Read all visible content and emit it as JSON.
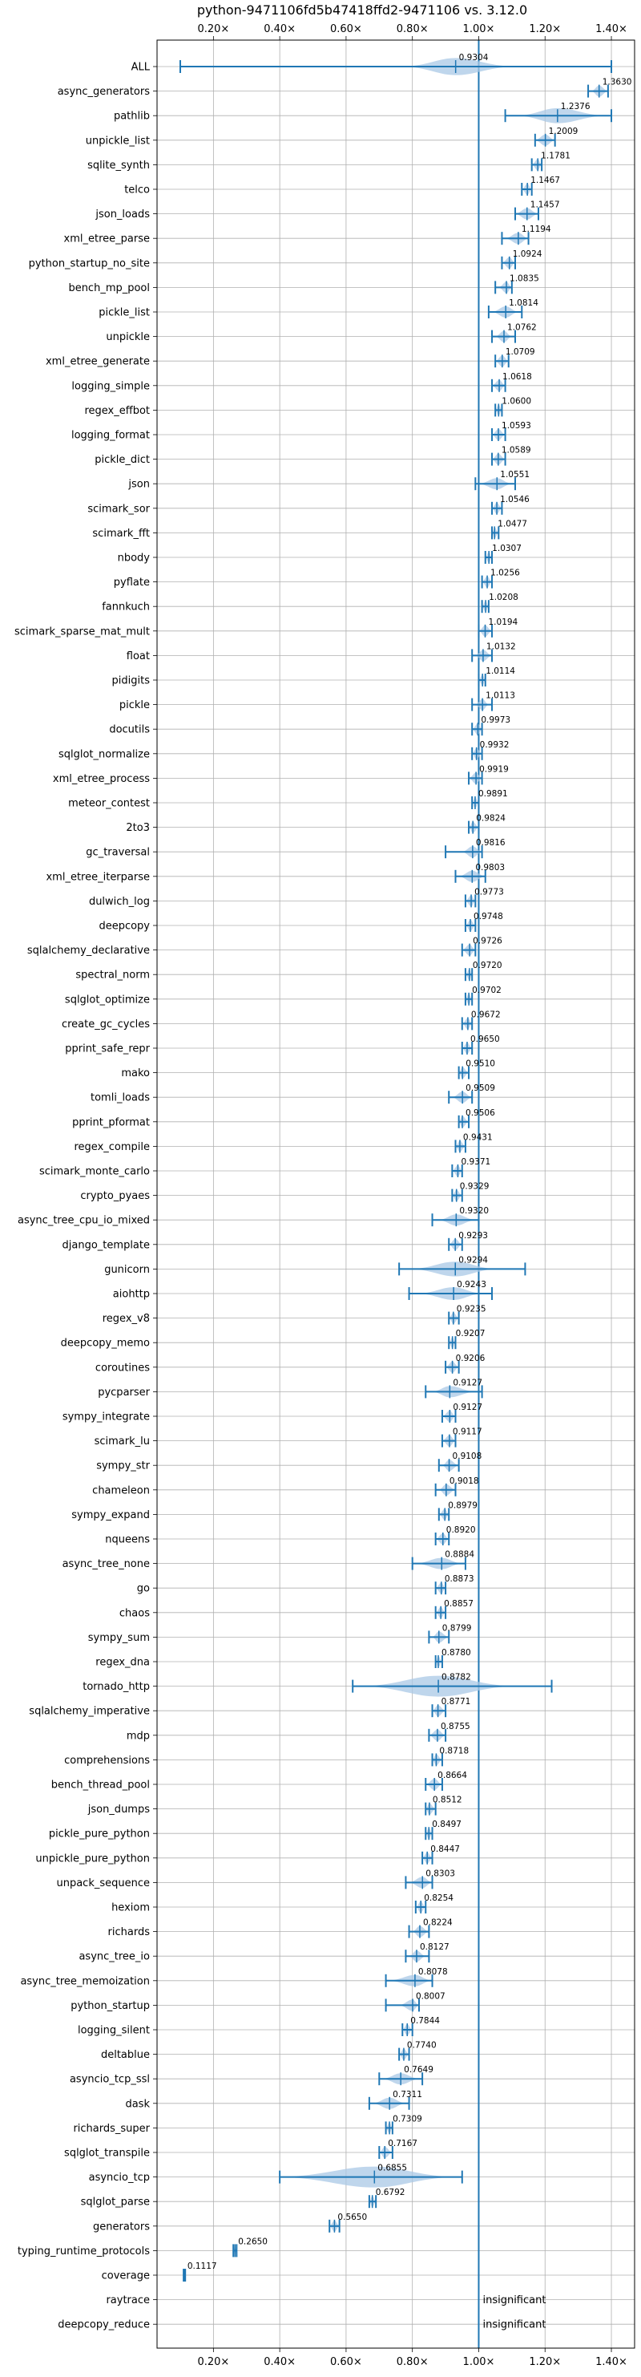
{
  "chart_data": {
    "type": "violin",
    "title": "python-9471106fd5b47418ffd2-9471106 vs. 3.12.0",
    "x_tick_labels": [
      "0.20×",
      "0.40×",
      "0.60×",
      "0.80×",
      "1.00×",
      "1.20×",
      "1.40×"
    ],
    "x_ticks": [
      0.2,
      0.4,
      0.6,
      0.8,
      1.0,
      1.2,
      1.4
    ],
    "xlim": [
      0.03,
      1.47
    ],
    "reference_line": 1.0,
    "grid": true,
    "accent_color": "#1f77b4",
    "violin_color": "#a9c8e6",
    "insignificant_label": "insignificant",
    "benchmarks": [
      {
        "name": "ALL",
        "value": 0.9304,
        "label": "0.9304",
        "lo": 0.1,
        "hi": 1.4,
        "vlo": 0.78,
        "vhi": 1.1
      },
      {
        "name": "async_generators",
        "value": 1.363,
        "label": "1.3630",
        "lo": 1.33,
        "hi": 1.39,
        "vlo": 1.34,
        "vhi": 1.39
      },
      {
        "name": "pathlib",
        "value": 1.2376,
        "label": "1.2376",
        "lo": 1.08,
        "hi": 1.4,
        "vlo": 1.12,
        "vhi": 1.38
      },
      {
        "name": "unpickle_list",
        "value": 1.2009,
        "label": "1.2009",
        "lo": 1.17,
        "hi": 1.23,
        "vlo": 1.17,
        "vhi": 1.23
      },
      {
        "name": "sqlite_synth",
        "value": 1.1781,
        "label": "1.1781",
        "lo": 1.16,
        "hi": 1.19,
        "vlo": 1.16,
        "vhi": 1.19
      },
      {
        "name": "telco",
        "value": 1.1467,
        "label": "1.1467",
        "lo": 1.13,
        "hi": 1.16,
        "vlo": 1.13,
        "vhi": 1.16
      },
      {
        "name": "json_loads",
        "value": 1.1457,
        "label": "1.1457",
        "lo": 1.11,
        "hi": 1.18,
        "vlo": 1.11,
        "vhi": 1.18
      },
      {
        "name": "xml_etree_parse",
        "value": 1.1194,
        "label": "1.1194",
        "lo": 1.07,
        "hi": 1.15,
        "vlo": 1.08,
        "vhi": 1.15
      },
      {
        "name": "python_startup_no_site",
        "value": 1.0924,
        "label": "1.0924",
        "lo": 1.07,
        "hi": 1.11,
        "vlo": 1.07,
        "vhi": 1.11
      },
      {
        "name": "bench_mp_pool",
        "value": 1.0835,
        "label": "1.0835",
        "lo": 1.05,
        "hi": 1.1,
        "vlo": 1.06,
        "vhi": 1.1
      },
      {
        "name": "pickle_list",
        "value": 1.0814,
        "label": "1.0814",
        "lo": 1.03,
        "hi": 1.13,
        "vlo": 1.04,
        "vhi": 1.12
      },
      {
        "name": "unpickle",
        "value": 1.0762,
        "label": "1.0762",
        "lo": 1.04,
        "hi": 1.11,
        "vlo": 1.05,
        "vhi": 1.1
      },
      {
        "name": "xml_etree_generate",
        "value": 1.0709,
        "label": "1.0709",
        "lo": 1.05,
        "hi": 1.09,
        "vlo": 1.05,
        "vhi": 1.09
      },
      {
        "name": "logging_simple",
        "value": 1.0618,
        "label": "1.0618",
        "lo": 1.04,
        "hi": 1.08,
        "vlo": 1.04,
        "vhi": 1.08
      },
      {
        "name": "regex_effbot",
        "value": 1.06,
        "label": "1.0600",
        "lo": 1.05,
        "hi": 1.07,
        "vlo": 1.05,
        "vhi": 1.07
      },
      {
        "name": "logging_format",
        "value": 1.0593,
        "label": "1.0593",
        "lo": 1.04,
        "hi": 1.08,
        "vlo": 1.04,
        "vhi": 1.08
      },
      {
        "name": "pickle_dict",
        "value": 1.0589,
        "label": "1.0589",
        "lo": 1.04,
        "hi": 1.08,
        "vlo": 1.04,
        "vhi": 1.08
      },
      {
        "name": "json",
        "value": 1.0551,
        "label": "1.0551",
        "lo": 0.99,
        "hi": 1.11,
        "vlo": 1.0,
        "vhi": 1.1
      },
      {
        "name": "scimark_sor",
        "value": 1.0546,
        "label": "1.0546",
        "lo": 1.04,
        "hi": 1.07,
        "vlo": 1.04,
        "vhi": 1.07
      },
      {
        "name": "scimark_fft",
        "value": 1.0477,
        "label": "1.0477",
        "lo": 1.04,
        "hi": 1.06,
        "vlo": 1.04,
        "vhi": 1.06
      },
      {
        "name": "nbody",
        "value": 1.0307,
        "label": "1.0307",
        "lo": 1.02,
        "hi": 1.04,
        "vlo": 1.02,
        "vhi": 1.04
      },
      {
        "name": "pyflate",
        "value": 1.0256,
        "label": "1.0256",
        "lo": 1.01,
        "hi": 1.04,
        "vlo": 1.01,
        "vhi": 1.04
      },
      {
        "name": "fannkuch",
        "value": 1.0208,
        "label": "1.0208",
        "lo": 1.01,
        "hi": 1.03,
        "vlo": 1.01,
        "vhi": 1.03
      },
      {
        "name": "scimark_sparse_mat_mult",
        "value": 1.0194,
        "label": "1.0194",
        "lo": 1.0,
        "hi": 1.04,
        "vlo": 1.0,
        "vhi": 1.04
      },
      {
        "name": "float",
        "value": 1.0132,
        "label": "1.0132",
        "lo": 0.98,
        "hi": 1.04,
        "vlo": 0.99,
        "vhi": 1.04
      },
      {
        "name": "pidigits",
        "value": 1.0114,
        "label": "1.0114",
        "lo": 1.0,
        "hi": 1.02,
        "vlo": 1.0,
        "vhi": 1.02
      },
      {
        "name": "pickle",
        "value": 1.0113,
        "label": "1.0113",
        "lo": 0.98,
        "hi": 1.04,
        "vlo": 0.99,
        "vhi": 1.03
      },
      {
        "name": "docutils",
        "value": 0.9973,
        "label": "0.9973",
        "lo": 0.98,
        "hi": 1.01,
        "vlo": 0.98,
        "vhi": 1.01
      },
      {
        "name": "sqlglot_normalize",
        "value": 0.9932,
        "label": "0.9932",
        "lo": 0.98,
        "hi": 1.01,
        "vlo": 0.98,
        "vhi": 1.01
      },
      {
        "name": "xml_etree_process",
        "value": 0.9919,
        "label": "0.9919",
        "lo": 0.97,
        "hi": 1.01,
        "vlo": 0.97,
        "vhi": 1.01
      },
      {
        "name": "meteor_contest",
        "value": 0.9891,
        "label": "0.9891",
        "lo": 0.98,
        "hi": 1.0,
        "vlo": 0.98,
        "vhi": 1.0
      },
      {
        "name": "2to3",
        "value": 0.9824,
        "label": "0.9824",
        "lo": 0.97,
        "hi": 1.0,
        "vlo": 0.97,
        "vhi": 1.0
      },
      {
        "name": "gc_traversal",
        "value": 0.9816,
        "label": "0.9816",
        "lo": 0.9,
        "hi": 1.01,
        "vlo": 0.95,
        "vhi": 1.01
      },
      {
        "name": "xml_etree_iterparse",
        "value": 0.9803,
        "label": "0.9803",
        "lo": 0.93,
        "hi": 1.02,
        "vlo": 0.94,
        "vhi": 1.02
      },
      {
        "name": "dulwich_log",
        "value": 0.9773,
        "label": "0.9773",
        "lo": 0.96,
        "hi": 0.99,
        "vlo": 0.96,
        "vhi": 0.99
      },
      {
        "name": "deepcopy",
        "value": 0.9748,
        "label": "0.9748",
        "lo": 0.96,
        "hi": 0.99,
        "vlo": 0.96,
        "vhi": 0.99
      },
      {
        "name": "sqlalchemy_declarative",
        "value": 0.9726,
        "label": "0.9726",
        "lo": 0.95,
        "hi": 0.99,
        "vlo": 0.95,
        "vhi": 0.99
      },
      {
        "name": "spectral_norm",
        "value": 0.972,
        "label": "0.9720",
        "lo": 0.96,
        "hi": 0.98,
        "vlo": 0.96,
        "vhi": 0.98
      },
      {
        "name": "sqlglot_optimize",
        "value": 0.9702,
        "label": "0.9702",
        "lo": 0.96,
        "hi": 0.98,
        "vlo": 0.96,
        "vhi": 0.98
      },
      {
        "name": "create_gc_cycles",
        "value": 0.9672,
        "label": "0.9672",
        "lo": 0.95,
        "hi": 0.98,
        "vlo": 0.95,
        "vhi": 0.98
      },
      {
        "name": "pprint_safe_repr",
        "value": 0.965,
        "label": "0.9650",
        "lo": 0.95,
        "hi": 0.98,
        "vlo": 0.95,
        "vhi": 0.98
      },
      {
        "name": "mako",
        "value": 0.951,
        "label": "0.9510",
        "lo": 0.94,
        "hi": 0.97,
        "vlo": 0.94,
        "vhi": 0.97
      },
      {
        "name": "tomli_loads",
        "value": 0.9509,
        "label": "0.9509",
        "lo": 0.91,
        "hi": 0.98,
        "vlo": 0.92,
        "vhi": 0.98
      },
      {
        "name": "pprint_pformat",
        "value": 0.9506,
        "label": "0.9506",
        "lo": 0.94,
        "hi": 0.97,
        "vlo": 0.94,
        "vhi": 0.97
      },
      {
        "name": "regex_compile",
        "value": 0.9431,
        "label": "0.9431",
        "lo": 0.93,
        "hi": 0.96,
        "vlo": 0.93,
        "vhi": 0.96
      },
      {
        "name": "scimark_monte_carlo",
        "value": 0.9371,
        "label": "0.9371",
        "lo": 0.92,
        "hi": 0.95,
        "vlo": 0.92,
        "vhi": 0.95
      },
      {
        "name": "crypto_pyaes",
        "value": 0.9329,
        "label": "0.9329",
        "lo": 0.92,
        "hi": 0.95,
        "vlo": 0.92,
        "vhi": 0.95
      },
      {
        "name": "async_tree_cpu_io_mixed",
        "value": 0.932,
        "label": "0.9320",
        "lo": 0.86,
        "hi": 1.0,
        "vlo": 0.88,
        "vhi": 0.99
      },
      {
        "name": "django_template",
        "value": 0.9293,
        "label": "0.9293",
        "lo": 0.91,
        "hi": 0.95,
        "vlo": 0.91,
        "vhi": 0.95
      },
      {
        "name": "gunicorn",
        "value": 0.9294,
        "label": "0.9294",
        "lo": 0.76,
        "hi": 1.14,
        "vlo": 0.8,
        "vhi": 1.05
      },
      {
        "name": "aiohttp",
        "value": 0.9243,
        "label": "0.9243",
        "lo": 0.79,
        "hi": 1.04,
        "vlo": 0.82,
        "vhi": 1.01
      },
      {
        "name": "regex_v8",
        "value": 0.9235,
        "label": "0.9235",
        "lo": 0.91,
        "hi": 0.94,
        "vlo": 0.91,
        "vhi": 0.94
      },
      {
        "name": "deepcopy_memo",
        "value": 0.9207,
        "label": "0.9207",
        "lo": 0.91,
        "hi": 0.93,
        "vlo": 0.91,
        "vhi": 0.93
      },
      {
        "name": "coroutines",
        "value": 0.9206,
        "label": "0.9206",
        "lo": 0.9,
        "hi": 0.94,
        "vlo": 0.9,
        "vhi": 0.94
      },
      {
        "name": "pycparser",
        "value": 0.9127,
        "label": "0.9127",
        "lo": 0.84,
        "hi": 1.01,
        "vlo": 0.86,
        "vhi": 0.99
      },
      {
        "name": "sympy_integrate",
        "value": 0.9127,
        "label": "0.9127",
        "lo": 0.89,
        "hi": 0.93,
        "vlo": 0.89,
        "vhi": 0.93
      },
      {
        "name": "scimark_lu",
        "value": 0.9117,
        "label": "0.9117",
        "lo": 0.89,
        "hi": 0.93,
        "vlo": 0.89,
        "vhi": 0.93
      },
      {
        "name": "sympy_str",
        "value": 0.9108,
        "label": "0.9108",
        "lo": 0.88,
        "hi": 0.94,
        "vlo": 0.89,
        "vhi": 0.94
      },
      {
        "name": "chameleon",
        "value": 0.9018,
        "label": "0.9018",
        "lo": 0.87,
        "hi": 0.93,
        "vlo": 0.88,
        "vhi": 0.93
      },
      {
        "name": "sympy_expand",
        "value": 0.8979,
        "label": "0.8979",
        "lo": 0.88,
        "hi": 0.91,
        "vlo": 0.88,
        "vhi": 0.91
      },
      {
        "name": "nqueens",
        "value": 0.892,
        "label": "0.8920",
        "lo": 0.87,
        "hi": 0.91,
        "vlo": 0.87,
        "vhi": 0.91
      },
      {
        "name": "async_tree_none",
        "value": 0.8884,
        "label": "0.8884",
        "lo": 0.8,
        "hi": 0.96,
        "vlo": 0.81,
        "vhi": 0.95
      },
      {
        "name": "go",
        "value": 0.8873,
        "label": "0.8873",
        "lo": 0.87,
        "hi": 0.9,
        "vlo": 0.87,
        "vhi": 0.9
      },
      {
        "name": "chaos",
        "value": 0.8857,
        "label": "0.8857",
        "lo": 0.87,
        "hi": 0.9,
        "vlo": 0.87,
        "vhi": 0.9
      },
      {
        "name": "sympy_sum",
        "value": 0.8799,
        "label": "0.8799",
        "lo": 0.85,
        "hi": 0.91,
        "vlo": 0.86,
        "vhi": 0.91
      },
      {
        "name": "regex_dna",
        "value": 0.878,
        "label": "0.8780",
        "lo": 0.87,
        "hi": 0.89,
        "vlo": 0.87,
        "vhi": 0.89
      },
      {
        "name": "tornado_http",
        "value": 0.8782,
        "label": "0.8782",
        "lo": 0.62,
        "hi": 1.22,
        "vlo": 0.66,
        "vhi": 1.1
      },
      {
        "name": "sqlalchemy_imperative",
        "value": 0.8771,
        "label": "0.8771",
        "lo": 0.86,
        "hi": 0.9,
        "vlo": 0.86,
        "vhi": 0.9
      },
      {
        "name": "mdp",
        "value": 0.8755,
        "label": "0.8755",
        "lo": 0.85,
        "hi": 0.9,
        "vlo": 0.85,
        "vhi": 0.9
      },
      {
        "name": "comprehensions",
        "value": 0.8718,
        "label": "0.8718",
        "lo": 0.86,
        "hi": 0.89,
        "vlo": 0.86,
        "vhi": 0.89
      },
      {
        "name": "bench_thread_pool",
        "value": 0.8664,
        "label": "0.8664",
        "lo": 0.84,
        "hi": 0.89,
        "vlo": 0.84,
        "vhi": 0.89
      },
      {
        "name": "json_dumps",
        "value": 0.8512,
        "label": "0.8512",
        "lo": 0.84,
        "hi": 0.87,
        "vlo": 0.84,
        "vhi": 0.87
      },
      {
        "name": "pickle_pure_python",
        "value": 0.8497,
        "label": "0.8497",
        "lo": 0.84,
        "hi": 0.86,
        "vlo": 0.84,
        "vhi": 0.86
      },
      {
        "name": "unpickle_pure_python",
        "value": 0.8447,
        "label": "0.8447",
        "lo": 0.83,
        "hi": 0.86,
        "vlo": 0.83,
        "vhi": 0.86
      },
      {
        "name": "unpack_sequence",
        "value": 0.8303,
        "label": "0.8303",
        "lo": 0.78,
        "hi": 0.86,
        "vlo": 0.79,
        "vhi": 0.86
      },
      {
        "name": "hexiom",
        "value": 0.8254,
        "label": "0.8254",
        "lo": 0.81,
        "hi": 0.84,
        "vlo": 0.81,
        "vhi": 0.84
      },
      {
        "name": "richards",
        "value": 0.8224,
        "label": "0.8224",
        "lo": 0.79,
        "hi": 0.85,
        "vlo": 0.8,
        "vhi": 0.85
      },
      {
        "name": "async_tree_io",
        "value": 0.8127,
        "label": "0.8127",
        "lo": 0.78,
        "hi": 0.85,
        "vlo": 0.79,
        "vhi": 0.84
      },
      {
        "name": "async_tree_memoization",
        "value": 0.8078,
        "label": "0.8078",
        "lo": 0.72,
        "hi": 0.86,
        "vlo": 0.73,
        "vhi": 0.86
      },
      {
        "name": "python_startup",
        "value": 0.8007,
        "label": "0.8007",
        "lo": 0.72,
        "hi": 0.82,
        "vlo": 0.76,
        "vhi": 0.82
      },
      {
        "name": "logging_silent",
        "value": 0.7844,
        "label": "0.7844",
        "lo": 0.77,
        "hi": 0.8,
        "vlo": 0.77,
        "vhi": 0.8
      },
      {
        "name": "deltablue",
        "value": 0.774,
        "label": "0.7740",
        "lo": 0.76,
        "hi": 0.79,
        "vlo": 0.76,
        "vhi": 0.79
      },
      {
        "name": "asyncio_tcp_ssl",
        "value": 0.7649,
        "label": "0.7649",
        "lo": 0.7,
        "hi": 0.83,
        "vlo": 0.71,
        "vhi": 0.82
      },
      {
        "name": "dask",
        "value": 0.7311,
        "label": "0.7311",
        "lo": 0.67,
        "hi": 0.79,
        "vlo": 0.68,
        "vhi": 0.78
      },
      {
        "name": "richards_super",
        "value": 0.7309,
        "label": "0.7309",
        "lo": 0.72,
        "hi": 0.74,
        "vlo": 0.72,
        "vhi": 0.74
      },
      {
        "name": "sqlglot_transpile",
        "value": 0.7167,
        "label": "0.7167",
        "lo": 0.7,
        "hi": 0.74,
        "vlo": 0.7,
        "vhi": 0.74
      },
      {
        "name": "asyncio_tcp",
        "value": 0.6855,
        "label": "0.6855",
        "lo": 0.4,
        "hi": 0.95,
        "vlo": 0.41,
        "vhi": 0.92
      },
      {
        "name": "sqlglot_parse",
        "value": 0.6792,
        "label": "0.6792",
        "lo": 0.67,
        "hi": 0.69,
        "vlo": 0.67,
        "vhi": 0.69
      },
      {
        "name": "generators",
        "value": 0.565,
        "label": "0.5650",
        "lo": 0.55,
        "hi": 0.58,
        "vlo": 0.55,
        "vhi": 0.58
      },
      {
        "name": "typing_runtime_protocols",
        "value": 0.265,
        "label": "0.2650",
        "lo": 0.26,
        "hi": 0.27,
        "vlo": 0.26,
        "vhi": 0.27
      },
      {
        "name": "coverage",
        "value": 0.1117,
        "label": "0.1117",
        "lo": 0.11,
        "hi": 0.115,
        "vlo": 0.11,
        "vhi": 0.115
      },
      {
        "name": "raytrace",
        "insignificant": true
      },
      {
        "name": "deepcopy_reduce",
        "insignificant": true
      }
    ]
  }
}
